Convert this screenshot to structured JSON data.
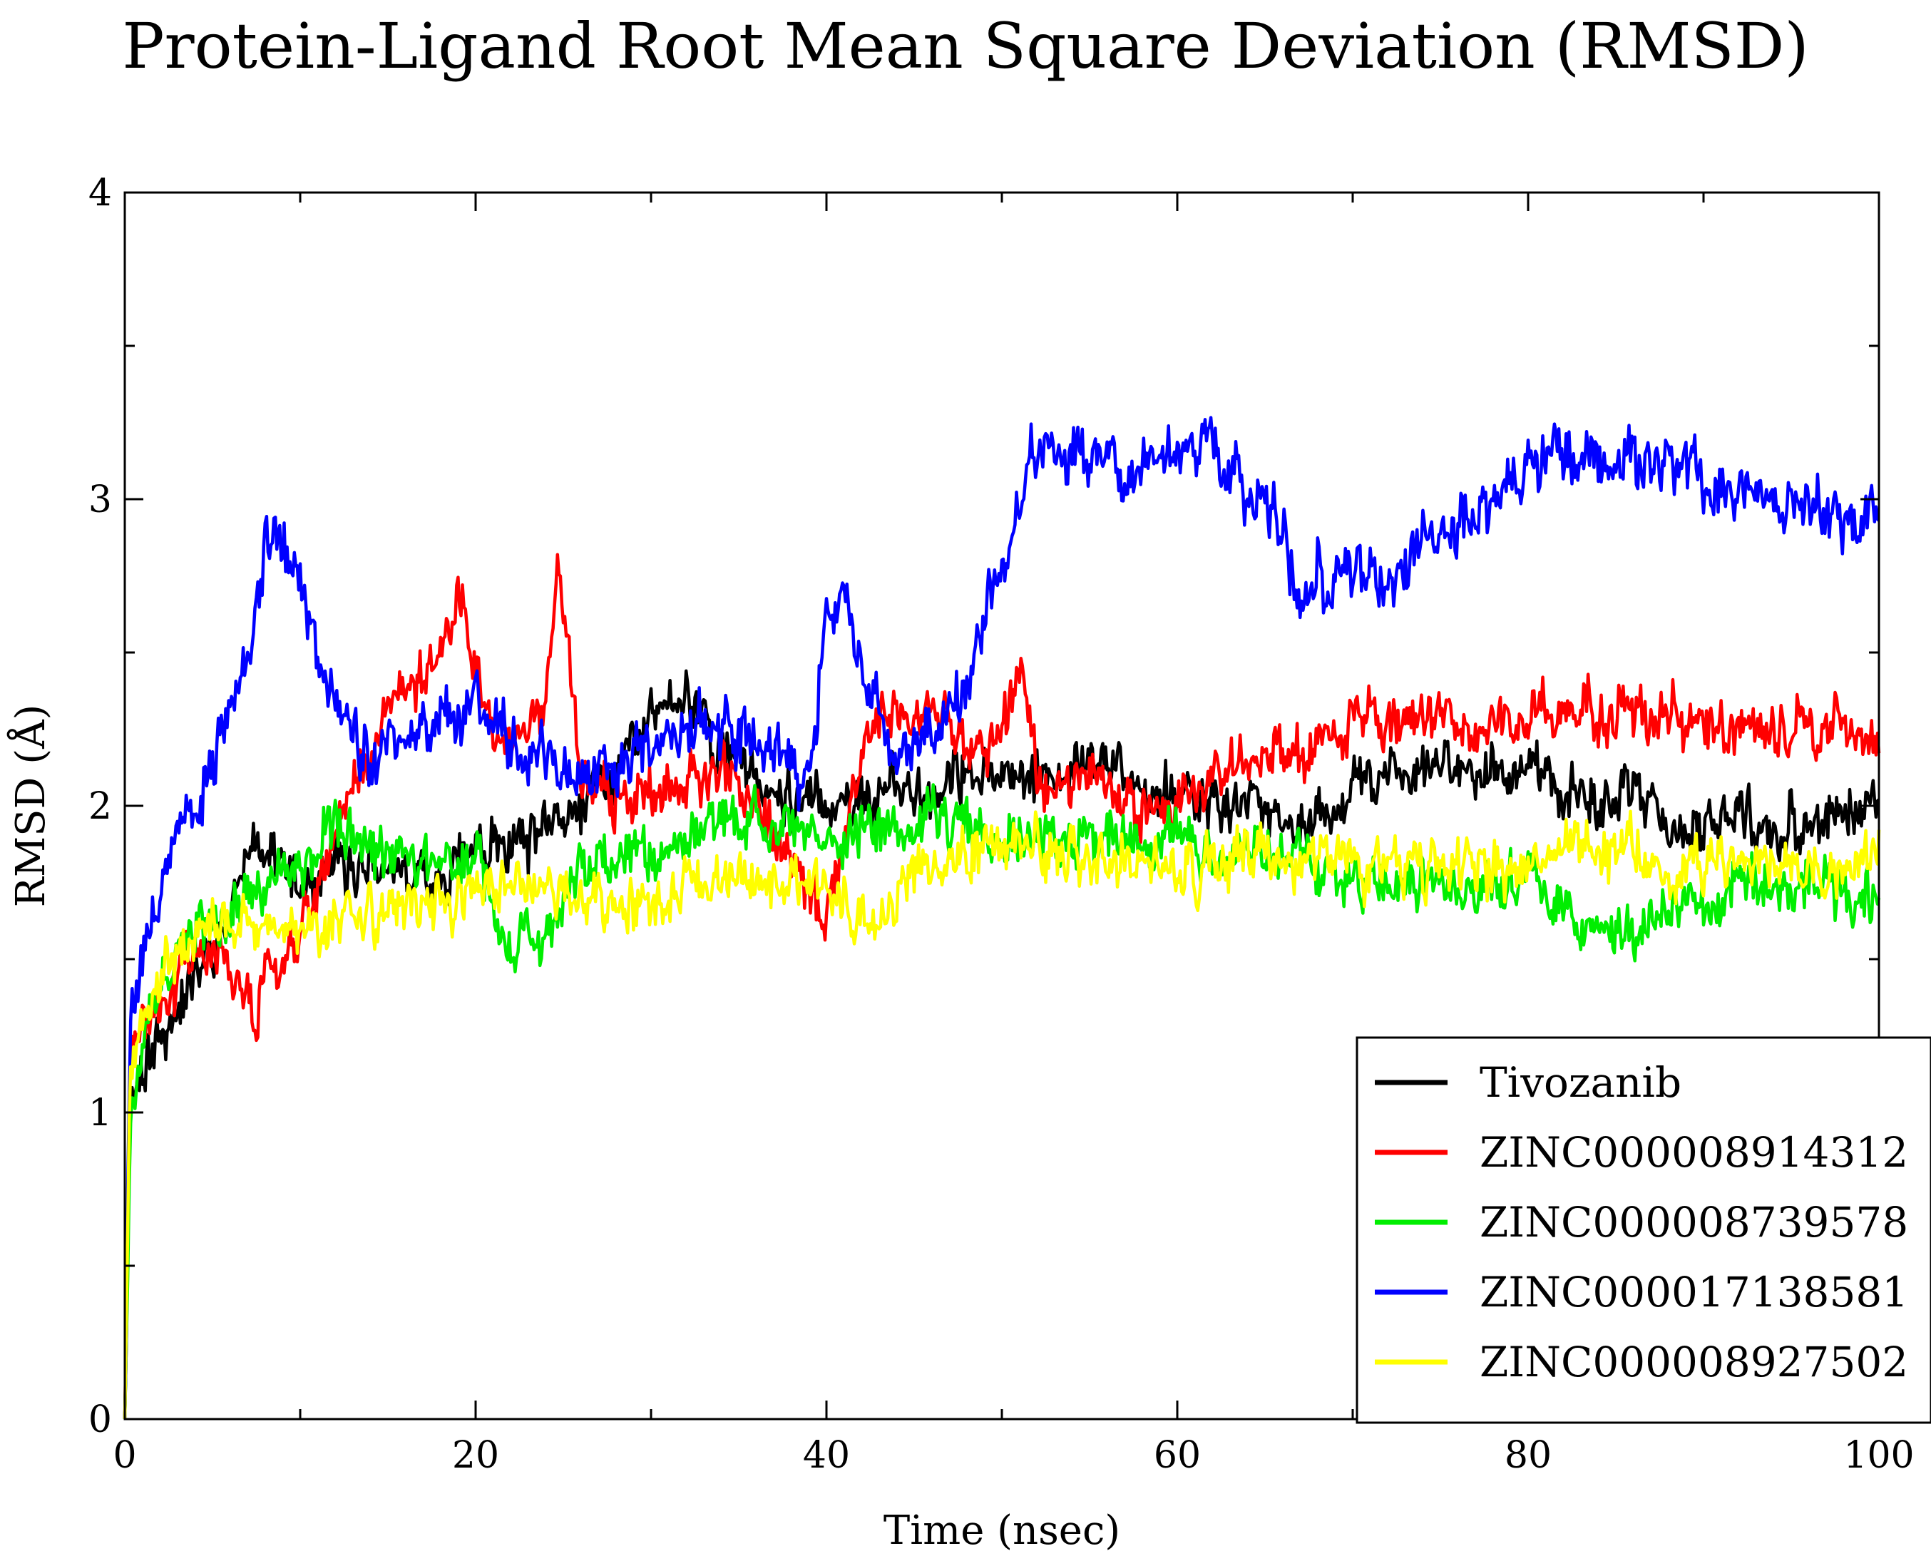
{
  "chart_data": {
    "type": "line",
    "title": "Protein-Ligand Root Mean Square Deviation (RMSD)",
    "xlabel": "Time (nsec)",
    "ylabel": "RMSD (Å)",
    "xlim": [
      0,
      100
    ],
    "ylim": [
      0,
      4
    ],
    "x_ticks": [
      "0",
      "20",
      "40",
      "60",
      "80",
      "100"
    ],
    "y_ticks": [
      "0",
      "1",
      "2",
      "3",
      "4"
    ],
    "legend_position": "bottom-right",
    "grid": false,
    "series": [
      {
        "name": "Tivozanib",
        "color": "#000000",
        "x": [
          0,
          0.3,
          1,
          2,
          3,
          4,
          5,
          6,
          7,
          8,
          10,
          12,
          14,
          16,
          18,
          20,
          22,
          24,
          26,
          28,
          30,
          32,
          34,
          36,
          38,
          40,
          42,
          44,
          46,
          48,
          50,
          52,
          54,
          56,
          58,
          60,
          62,
          64,
          66,
          68,
          70,
          72,
          74,
          76,
          78,
          80,
          82,
          84,
          86,
          88,
          90,
          92,
          94,
          96,
          98,
          100
        ],
        "y": [
          0.0,
          1.05,
          1.15,
          1.25,
          1.35,
          1.45,
          1.55,
          1.65,
          1.85,
          1.9,
          1.7,
          1.8,
          1.8,
          1.75,
          1.8,
          1.85,
          1.85,
          1.9,
          2.0,
          2.1,
          2.3,
          2.35,
          2.2,
          2.1,
          2.0,
          2.0,
          2.05,
          2.05,
          2.05,
          2.1,
          2.1,
          2.1,
          2.1,
          2.15,
          2.05,
          2.05,
          2.0,
          2.0,
          1.95,
          1.95,
          2.05,
          2.1,
          2.15,
          2.1,
          2.1,
          2.1,
          2.05,
          2.0,
          2.05,
          1.95,
          1.9,
          1.95,
          1.9,
          1.95,
          1.95,
          2.0
        ],
        "noise": 0.1,
        "seed": 11
      },
      {
        "name": "ZINC000008914312",
        "color": "#ff0000",
        "x": [
          0,
          0.3,
          1,
          2,
          3,
          4,
          5,
          6,
          7,
          7.5,
          8,
          9,
          10,
          12,
          14,
          16,
          17,
          18,
          19,
          20,
          22,
          24,
          24.7,
          26,
          28,
          30,
          32,
          34,
          36,
          38,
          39,
          40,
          41,
          42,
          44,
          46,
          48,
          50,
          51,
          52,
          54,
          56,
          58,
          60,
          62,
          64,
          66,
          68,
          70,
          72,
          74,
          76,
          78,
          80,
          82,
          84,
          86,
          88,
          90,
          92,
          94,
          96,
          98,
          100
        ],
        "y": [
          0.0,
          1.2,
          1.3,
          1.35,
          1.45,
          1.5,
          1.5,
          1.45,
          1.4,
          1.25,
          1.45,
          1.55,
          1.6,
          1.9,
          2.2,
          2.4,
          2.45,
          2.5,
          2.7,
          2.4,
          2.2,
          2.3,
          2.8,
          2.1,
          2.0,
          2.05,
          2.1,
          2.1,
          2.0,
          1.8,
          1.7,
          1.65,
          1.9,
          2.2,
          2.3,
          2.3,
          2.2,
          2.2,
          2.5,
          2.1,
          2.05,
          2.1,
          2.0,
          2.0,
          2.1,
          2.15,
          2.15,
          2.2,
          2.25,
          2.3,
          2.3,
          2.25,
          2.3,
          2.3,
          2.3,
          2.3,
          2.3,
          2.3,
          2.25,
          2.25,
          2.25,
          2.25,
          2.25,
          2.2
        ],
        "noise": 0.1,
        "seed": 23
      },
      {
        "name": "ZINC000008739578",
        "color": "#00ee00",
        "x": [
          0,
          0.3,
          1,
          2,
          3,
          4,
          5,
          6,
          7,
          8,
          10,
          12,
          14,
          16,
          18,
          20,
          21,
          22,
          23,
          24,
          26,
          28,
          30,
          32,
          34,
          36,
          38,
          40,
          42,
          44,
          46,
          48,
          50,
          52,
          54,
          56,
          58,
          60,
          62,
          64,
          66,
          68,
          70,
          72,
          74,
          76,
          78,
          80,
          82,
          84,
          86,
          88,
          90,
          92,
          94,
          96,
          98,
          100
        ],
        "y": [
          0.0,
          1.0,
          1.2,
          1.4,
          1.5,
          1.6,
          1.6,
          1.65,
          1.7,
          1.75,
          1.8,
          1.95,
          1.85,
          1.8,
          1.8,
          1.85,
          1.7,
          1.55,
          1.55,
          1.6,
          1.75,
          1.8,
          1.85,
          1.9,
          1.95,
          1.95,
          1.9,
          1.85,
          1.95,
          1.95,
          1.95,
          1.95,
          1.9,
          1.9,
          1.9,
          1.9,
          1.9,
          1.95,
          1.85,
          1.85,
          1.85,
          1.8,
          1.75,
          1.75,
          1.75,
          1.7,
          1.75,
          1.75,
          1.7,
          1.6,
          1.6,
          1.65,
          1.7,
          1.75,
          1.75,
          1.75,
          1.7,
          1.7
        ],
        "noise": 0.1,
        "seed": 37
      },
      {
        "name": "ZINC000017138581",
        "color": "#0000ff",
        "x": [
          0,
          0.3,
          1,
          2,
          3,
          4,
          5,
          6,
          7,
          8,
          9,
          10,
          11,
          12,
          14,
          16,
          18,
          20,
          22,
          24,
          26,
          28,
          30,
          32,
          34,
          36,
          38,
          39,
          40,
          41,
          42,
          44,
          46,
          48,
          49,
          50,
          51,
          52,
          54,
          56,
          58,
          60,
          61,
          62,
          64,
          66,
          67,
          68,
          70,
          72,
          74,
          76,
          78,
          80,
          82,
          84,
          86,
          88,
          90,
          92,
          94,
          96,
          98,
          100
        ],
        "y": [
          0.0,
          1.35,
          1.55,
          1.75,
          1.9,
          2.0,
          2.15,
          2.3,
          2.45,
          2.85,
          2.85,
          2.75,
          2.5,
          2.35,
          2.15,
          2.2,
          2.25,
          2.35,
          2.25,
          2.15,
          2.1,
          2.15,
          2.2,
          2.25,
          2.25,
          2.2,
          2.1,
          2.1,
          2.6,
          2.7,
          2.5,
          2.15,
          2.25,
          2.35,
          2.6,
          2.8,
          3.0,
          3.15,
          3.15,
          3.1,
          3.1,
          3.15,
          3.15,
          3.2,
          3.0,
          2.95,
          2.6,
          2.75,
          2.75,
          2.7,
          2.85,
          2.95,
          3.0,
          3.1,
          3.15,
          3.15,
          3.15,
          3.15,
          3.05,
          3.05,
          3.0,
          3.0,
          2.95,
          3.0
        ],
        "noise": 0.11,
        "seed": 53
      },
      {
        "name": "ZINC000008927502",
        "color": "#ffff00",
        "x": [
          0,
          0.3,
          1,
          2,
          3,
          4,
          5,
          6,
          8,
          10,
          12,
          14,
          16,
          18,
          20,
          22,
          24,
          26,
          28,
          30,
          32,
          34,
          36,
          38,
          40,
          42,
          43,
          44,
          46,
          48,
          50,
          52,
          54,
          56,
          58,
          60,
          62,
          64,
          66,
          68,
          70,
          72,
          74,
          76,
          78,
          80,
          82,
          84,
          86,
          88,
          90,
          92,
          94,
          96,
          98,
          100
        ],
        "y": [
          0.0,
          1.1,
          1.3,
          1.45,
          1.55,
          1.6,
          1.6,
          1.6,
          1.6,
          1.6,
          1.65,
          1.65,
          1.65,
          1.7,
          1.7,
          1.75,
          1.75,
          1.7,
          1.65,
          1.7,
          1.75,
          1.75,
          1.75,
          1.75,
          1.7,
          1.6,
          1.6,
          1.7,
          1.8,
          1.85,
          1.9,
          1.9,
          1.85,
          1.85,
          1.85,
          1.8,
          1.8,
          1.85,
          1.8,
          1.8,
          1.8,
          1.8,
          1.8,
          1.8,
          1.8,
          1.8,
          1.85,
          1.85,
          1.85,
          1.8,
          1.8,
          1.8,
          1.8,
          1.8,
          1.8,
          1.85
        ],
        "noise": 0.1,
        "seed": 71
      }
    ]
  }
}
